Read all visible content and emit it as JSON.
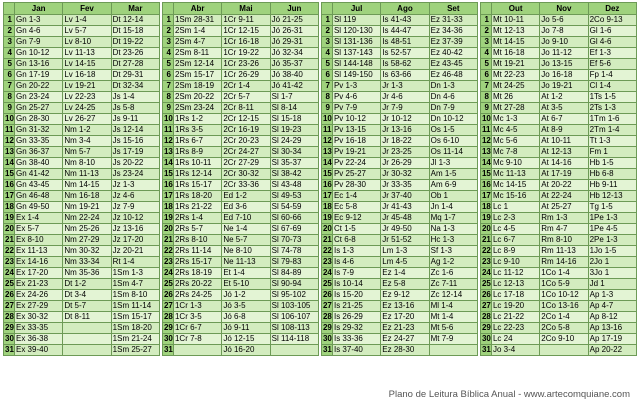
{
  "months": [
    "Jan",
    "Fev",
    "Mar",
    "Abr",
    "Mai",
    "Jun",
    "Jul",
    "Ago",
    "Set",
    "Out",
    "Nov",
    "Dez"
  ],
  "rows": [
    {
      "day": "1",
      "q": [
        [
          "Gn 1-3",
          "Lv 1-4",
          "Dt 12-14"
        ],
        [
          "1Sm 28-31",
          "1Cr 9-11",
          "Jó 21-25"
        ],
        [
          "Sl 119",
          "Is 41-43",
          "Ez 31-33"
        ],
        [
          "Mt 10-11",
          "Jo 5-6",
          "2Co 9-13"
        ]
      ]
    },
    {
      "day": "2",
      "q": [
        [
          "Gn 4-6",
          "Lv 5-7",
          "Dt 15-18"
        ],
        [
          "2Sm 1-4",
          "1Cr 12-15",
          "Jó 26-31"
        ],
        [
          "Sl 120-130",
          "Is 44-47",
          "Ez 34-36"
        ],
        [
          "Mt 12-13",
          "Jo 7-8",
          "Gl 1-6"
        ]
      ]
    },
    {
      "day": "3",
      "q": [
        [
          "Gn 7-9",
          "Lv 8-10",
          "Dt 19-22"
        ],
        [
          "2Sm 4-7",
          "1Cr 16-18",
          "Jó 29-31"
        ],
        [
          "Sl 131-136",
          "Is 48-51",
          "Ez 37-39"
        ],
        [
          "Mt 14-15",
          "Jo 9-10",
          "Gl 4-6"
        ]
      ]
    },
    {
      "day": "4",
      "q": [
        [
          "Gn 10-12",
          "Lv 11-13",
          "Dt 23-26"
        ],
        [
          "2Sm 8-11",
          "1Cr 19-22",
          "Jó 32-34"
        ],
        [
          "Sl 137-143",
          "Is 52-57",
          "Ez 40-42"
        ],
        [
          "Mt 16-18",
          "Jo 11-12",
          "Ef 1-3"
        ]
      ]
    },
    {
      "day": "5",
      "q": [
        [
          "Gn 13-16",
          "Lv 14-15",
          "Dt 27-28"
        ],
        [
          "2Sm 12-14",
          "1Cr 23-26",
          "Jó 35-37"
        ],
        [
          "Sl 144-148",
          "Is 58-62",
          "Ez 43-45"
        ],
        [
          "Mt 19-21",
          "Jo 13-15",
          "Ef 5-6"
        ]
      ]
    },
    {
      "day": "6",
      "q": [
        [
          "Gn 17-19",
          "Lv 16-18",
          "Dt 29-31"
        ],
        [
          "2Sm 15-17",
          "1Cr 26-29",
          "Jó 38-40"
        ],
        [
          "Sl 149-150",
          "Is 63-66",
          "Ez 46-48"
        ],
        [
          "Mt 22-23",
          "Jo 16-18",
          "Fp 1-4"
        ]
      ]
    },
    {
      "day": "7",
      "q": [
        [
          "Gn 20-22",
          "Lv 19-21",
          "Dt 32-34"
        ],
        [
          "2Sm 18-19",
          "2Cr 1-4",
          "Jó 41-42"
        ],
        [
          "Pv 1-3",
          "Jr 1-3",
          "Dn 1-3"
        ],
        [
          "Mt 24-25",
          "Jo 19-21",
          "Cl 1-4"
        ]
      ]
    },
    {
      "day": "8",
      "q": [
        [
          "Gn 23-24",
          "Lv 22-23",
          "Js 1-4"
        ],
        [
          "2Sm 20-22",
          "2Cr 5-7",
          "Sl 1-7"
        ],
        [
          "Pv 4-6",
          "Jr 4-6",
          "Dn 4-6"
        ],
        [
          "Mt 26",
          "At 1-2",
          "1Ts 1-5"
        ]
      ]
    },
    {
      "day": "9",
      "q": [
        [
          "Gn 25-27",
          "Lv 24-25",
          "Js 5-8"
        ],
        [
          "2Sm 23-24",
          "2Cr 8-11",
          "Sl 8-14"
        ],
        [
          "Pv 7-9",
          "Jr 7-9",
          "Dn 7-9"
        ],
        [
          "Mt 27-28",
          "At 3-5",
          "2Ts 1-3"
        ]
      ]
    },
    {
      "day": "10",
      "q": [
        [
          "Gn 28-30",
          "Lv 26-27",
          "Js 9-11"
        ],
        [
          "1Rs 1-2",
          "2Cr 12-15",
          "Sl 15-18"
        ],
        [
          "Pv 10-12",
          "Jr 10-12",
          "Dn 10-12"
        ],
        [
          "Mc 1-3",
          "At 6-7",
          "1Tm 1-6"
        ]
      ]
    },
    {
      "day": "11",
      "q": [
        [
          "Gn 31-32",
          "Nm 1-2",
          "Js 12-14"
        ],
        [
          "1Rs 3-5",
          "2Cr 16-19",
          "Sl 19-23"
        ],
        [
          "Pv 13-15",
          "Jr 13-16",
          "Os 1-5"
        ],
        [
          "Mc 4-5",
          "At 8-9",
          "2Tm 1-4"
        ]
      ]
    },
    {
      "day": "12",
      "q": [
        [
          "Gn 33-35",
          "Nm 3-4",
          "Js 15-16"
        ],
        [
          "1Rs 6-7",
          "2Cr 20-23",
          "Sl 24-29"
        ],
        [
          "Pv 16-18",
          "Jr 18-22",
          "Os 6-10"
        ],
        [
          "Mc 5-6",
          "At 10-11",
          "Tt 1-3"
        ]
      ]
    },
    {
      "day": "13",
      "q": [
        [
          "Gn 36-37",
          "Nm 5-7",
          "Js 17-19"
        ],
        [
          "1Rs 8-9",
          "2Cr 24-27",
          "Sl 30-34"
        ],
        [
          "Pv 19-21",
          "Jr 23-25",
          "Os 11-14"
        ],
        [
          "Mc 7-8",
          "At 12-13",
          "Fm 1"
        ]
      ]
    },
    {
      "day": "14",
      "q": [
        [
          "Gn 38-40",
          "Nm 8-10",
          "Js 20-22"
        ],
        [
          "1Rs 10-11",
          "2Cr 27-29",
          "Sl 35-37"
        ],
        [
          "Pv 22-24",
          "Jr 26-29",
          "Jl 1-3"
        ],
        [
          "Mc 9-10",
          "At 14-16",
          "Hb 1-5"
        ]
      ]
    },
    {
      "day": "15",
      "q": [
        [
          "Gn 41-42",
          "Nm 11-13",
          "Js 23-24"
        ],
        [
          "1Rs 12-14",
          "2Cr 30-32",
          "Sl 38-42"
        ],
        [
          "Pv 25-27",
          "Jr 30-32",
          "Am 1-5"
        ],
        [
          "Mc 11-13",
          "At 17-19",
          "Hb 6-8"
        ]
      ]
    },
    {
      "day": "16",
      "q": [
        [
          "Gn 43-45",
          "Nm 14-15",
          "Jz 1-3"
        ],
        [
          "1Rs 15-17",
          "2Cr 33-36",
          "Sl 43-48"
        ],
        [
          "Pv 28-30",
          "Jr 33-35",
          "Am 6-9"
        ],
        [
          "Mc 14-15",
          "At 20-22",
          "Hb 9-11"
        ]
      ]
    },
    {
      "day": "17",
      "q": [
        [
          "Gn 46-48",
          "Nm 16-18",
          "Jz 4-6"
        ],
        [
          "1Rs 18-20",
          "Ed 1-2",
          "Sl 49-53"
        ],
        [
          "Ec 1-4",
          "Jr 37-40",
          "Ob 1"
        ],
        [
          "Mc 15-16",
          "At 22-24",
          "Hb 12-13"
        ]
      ]
    },
    {
      "day": "18",
      "q": [
        [
          "Gn 49-50",
          "Nm 19-21",
          "Jz 7-9"
        ],
        [
          "1Rs 21-22",
          "Ed 3-6",
          "Sl 54-59"
        ],
        [
          "Ec 5-8",
          "Jr 41-43",
          "Jn 1-4"
        ],
        [
          "Lc 1",
          "At 25-27",
          "Tg 1-5"
        ]
      ]
    },
    {
      "day": "19",
      "q": [
        [
          "Ex 1-4",
          "Nm 22-24",
          "Jz 10-12"
        ],
        [
          "2Rs 1-4",
          "Ed 7-10",
          "Sl 60-66"
        ],
        [
          "Ec 9-12",
          "Jr 45-48",
          "Mq 1-7"
        ],
        [
          "Lc 2-3",
          "Rm 1-3",
          "1Pe 1-3"
        ]
      ]
    },
    {
      "day": "20",
      "q": [
        [
          "Ex 5-7",
          "Nm 25-26",
          "Jz 13-16"
        ],
        [
          "2Rs 5-7",
          "Ne 1-4",
          "Sl 67-69"
        ],
        [
          "Ct 1-5",
          "Jr 49-50",
          "Na 1-3"
        ],
        [
          "Lc 4-5",
          "Rm 4-7",
          "1Pe 4-5"
        ]
      ]
    },
    {
      "day": "21",
      "q": [
        [
          "Ex 8-10",
          "Nm 27-29",
          "Jz 17-20"
        ],
        [
          "2Rs 8-10",
          "Ne 5-7",
          "Sl 70-73"
        ],
        [
          "Ct 6-8",
          "Jr 51-52",
          "Hc 1-3"
        ],
        [
          "Lc 6-7",
          "Rm 8-10",
          "2Pe 1-3"
        ]
      ]
    },
    {
      "day": "22",
      "q": [
        [
          "Ex 11-13",
          "Nm 30-32",
          "Jz 20-21"
        ],
        [
          "2Rs 11-14",
          "Ne 8-10",
          "Sl 74-78"
        ],
        [
          "Is 1-3",
          "Lm 1-3",
          "Sf 1-3"
        ],
        [
          "Lc 8-9",
          "Rm 11-13",
          "1Jo 1-5"
        ]
      ]
    },
    {
      "day": "23",
      "q": [
        [
          "Ex 14-16",
          "Nm 33-34",
          "Rt 1-4"
        ],
        [
          "2Rs 15-17",
          "Ne 11-13",
          "Sl 79-83"
        ],
        [
          "Is 4-6",
          "Lm 4-5",
          "Ag 1-2"
        ],
        [
          "Lc 9-10",
          "Rm 14-16",
          "2Jo 1"
        ]
      ]
    },
    {
      "day": "24",
      "q": [
        [
          "Ex 17-20",
          "Nm 35-36",
          "1Sm 1-3"
        ],
        [
          "2Rs 18-19",
          "Et 1-4",
          "Sl 84-89"
        ],
        [
          "Is 7-9",
          "Ez 1-4",
          "Zc 1-6"
        ],
        [
          "Lc 11-12",
          "1Co 1-4",
          "3Jo 1"
        ]
      ]
    },
    {
      "day": "25",
      "q": [
        [
          "Ex 21-23",
          "Dt 1-2",
          "1Sm 4-7"
        ],
        [
          "2Rs 20-22",
          "Et 5-10",
          "Sl 90-94"
        ],
        [
          "Is 10-14",
          "Ez 5-8",
          "Zc 7-11"
        ],
        [
          "Lc 12-13",
          "1Co 5-9",
          "Jd 1"
        ]
      ]
    },
    {
      "day": "26",
      "q": [
        [
          "Ex 24-26",
          "Dt 3-4",
          "1Sm 8-10"
        ],
        [
          "2Rs 24-25",
          "Jó 1-2",
          "Sl 95-102"
        ],
        [
          "Is 15-20",
          "Ez 9-12",
          "Zc 12-14"
        ],
        [
          "Lc 17-18",
          "1Co 10-12",
          "Ap 1-3"
        ]
      ]
    },
    {
      "day": "27",
      "q": [
        [
          "Ex 27-29",
          "Dt 5-7",
          "1Sm 11-14"
        ],
        [
          "1Cr 1-3",
          "Jó 3-5",
          "Sl 103-105"
        ],
        [
          "Is 21-25",
          "Ez 13-16",
          "Ml 1-4"
        ],
        [
          "Lc 19-20",
          "1Co 13-16",
          "Ap 4-7"
        ]
      ]
    },
    {
      "day": "28",
      "q": [
        [
          "Ex 30-32",
          "Dt 8-11",
          "1Sm 15-17"
        ],
        [
          "1Cr 3-5",
          "Jó 6-8",
          "Sl 106-107"
        ],
        [
          "Is 26-29",
          "Ez 17-20",
          "Mt 1-4"
        ],
        [
          "Lc 21-22",
          "2Co 1-4",
          "Ap 8-12"
        ]
      ]
    },
    {
      "day": "29",
      "q": [
        [
          "Ex 33-35",
          "",
          "1Sm 18-20"
        ],
        [
          "1Cr 6-7",
          "Jó 9-11",
          "Sl 108-113"
        ],
        [
          "Is 29-32",
          "Ez 21-23",
          "Mt 5-6"
        ],
        [
          "Lc 22-23",
          "2Co 5-8",
          "Ap 13-16"
        ]
      ]
    },
    {
      "day": "30",
      "q": [
        [
          "Ex 36-38",
          "",
          "1Sm 21-24"
        ],
        [
          "1Cr 7-8",
          "Jó 12-15",
          "Sl 114-118"
        ],
        [
          "Is 33-36",
          "Ez 24-27",
          "Mt 7-9"
        ],
        [
          "Lc 24",
          "2Co 9-10",
          "Ap 17-19"
        ]
      ]
    },
    {
      "day": "31",
      "q": [
        [
          "Ex 39-40",
          "",
          "1Sm 25-27"
        ],
        [
          "",
          "Jó 16-20",
          ""
        ],
        [
          "Is 37-40",
          "Ez 28-30",
          ""
        ],
        [
          "Jo 3-4",
          "",
          "Ap 20-22"
        ]
      ]
    }
  ],
  "footer": "Plano de Leitura Bíblica Anual - www.artecomquiane.com"
}
